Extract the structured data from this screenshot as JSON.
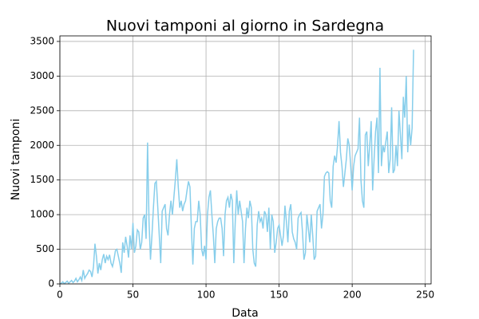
{
  "chart_data": {
    "type": "line",
    "title": "Nuovi tamponi al giorno in Sardegna",
    "x_label": "Data",
    "y_label": "Nuovi tamponi",
    "color": "#87ceeb",
    "grid": true,
    "xlim": [
      0,
      254
    ],
    "ylim": [
      0,
      3580
    ],
    "xticks": [
      0,
      50,
      100,
      150,
      200,
      250
    ],
    "yticks": [
      0,
      500,
      1000,
      1500,
      2000,
      2500,
      3000,
      3500
    ],
    "x": [
      0,
      1,
      2,
      3,
      4,
      5,
      6,
      7,
      8,
      9,
      10,
      11,
      12,
      13,
      14,
      15,
      16,
      17,
      18,
      19,
      20,
      21,
      22,
      23,
      24,
      25,
      26,
      27,
      28,
      29,
      30,
      31,
      32,
      33,
      34,
      35,
      36,
      37,
      38,
      39,
      40,
      41,
      42,
      43,
      44,
      45,
      46,
      47,
      48,
      49,
      50,
      51,
      52,
      53,
      54,
      55,
      56,
      57,
      58,
      59,
      60,
      61,
      62,
      63,
      64,
      65,
      66,
      67,
      68,
      69,
      70,
      71,
      72,
      73,
      74,
      75,
      76,
      77,
      78,
      79,
      80,
      81,
      82,
      83,
      84,
      85,
      86,
      87,
      88,
      89,
      90,
      91,
      92,
      93,
      94,
      95,
      96,
      97,
      98,
      99,
      100,
      101,
      102,
      103,
      104,
      105,
      106,
      107,
      108,
      109,
      110,
      111,
      112,
      113,
      114,
      115,
      116,
      117,
      118,
      119,
      120,
      121,
      122,
      123,
      124,
      125,
      126,
      127,
      128,
      129,
      130,
      131,
      132,
      133,
      134,
      135,
      136,
      137,
      138,
      139,
      140,
      141,
      142,
      143,
      144,
      145,
      146,
      147,
      148,
      149,
      150,
      151,
      152,
      153,
      154,
      155,
      156,
      157,
      158,
      159,
      160,
      161,
      162,
      163,
      164,
      165,
      166,
      167,
      168,
      169,
      170,
      171,
      172,
      173,
      174,
      175,
      176,
      177,
      178,
      179,
      180,
      181,
      182,
      183,
      184,
      185,
      186,
      187,
      188,
      189,
      190,
      191,
      192,
      193,
      194,
      195,
      196,
      197,
      198,
      199,
      200,
      201,
      202,
      203,
      204,
      205,
      206,
      207,
      208,
      209,
      210,
      211,
      212,
      213,
      214,
      215,
      216,
      217,
      218,
      219,
      220,
      221,
      222,
      223,
      224,
      225,
      226,
      227,
      228,
      229,
      230,
      231,
      232,
      233,
      234,
      235,
      236,
      237,
      238,
      239,
      240,
      241,
      242
    ],
    "values": [
      0,
      10,
      30,
      5,
      20,
      40,
      10,
      30,
      50,
      20,
      40,
      80,
      30,
      60,
      100,
      50,
      200,
      80,
      120,
      150,
      200,
      180,
      100,
      250,
      580,
      400,
      150,
      300,
      200,
      350,
      430,
      300,
      400,
      350,
      420,
      300,
      250,
      350,
      480,
      500,
      400,
      300,
      160,
      600,
      450,
      680,
      550,
      380,
      700,
      500,
      880,
      450,
      550,
      780,
      750,
      500,
      600,
      950,
      1000,
      650,
      2040,
      900,
      350,
      700,
      1100,
      1450,
      1480,
      1100,
      700,
      300,
      1050,
      1100,
      1150,
      800,
      700,
      1000,
      1200,
      1000,
      1250,
      1500,
      1800,
      1400,
      1100,
      1200,
      1050,
      1150,
      1200,
      1350,
      1480,
      1400,
      800,
      280,
      800,
      900,
      900,
      1200,
      1000,
      500,
      400,
      550,
      350,
      1000,
      1250,
      1350,
      1000,
      700,
      300,
      800,
      900,
      950,
      950,
      800,
      400,
      1000,
      1200,
      1250,
      1100,
      1300,
      1200,
      300,
      900,
      1350,
      1000,
      1200,
      1050,
      900,
      300,
      800,
      1100,
      950,
      1200,
      1100,
      500,
      300,
      250,
      850,
      1050,
      900,
      950,
      800,
      1050,
      1000,
      750,
      1100,
      500,
      1000,
      900,
      450,
      600,
      800,
      850,
      700,
      550,
      700,
      1130,
      900,
      600,
      1050,
      1150,
      750,
      650,
      600,
      500,
      950,
      1000,
      1030,
      750,
      350,
      450,
      1000,
      800,
      600,
      1000,
      700,
      350,
      400,
      1050,
      1100,
      1150,
      800,
      1000,
      1550,
      1600,
      1620,
      1600,
      1200,
      1100,
      1700,
      1850,
      1750,
      2000,
      2350,
      1900,
      1700,
      1400,
      1600,
      1800,
      2100,
      2000,
      1700,
      1350,
      1700,
      1850,
      1900,
      1950,
      2400,
      1500,
      1200,
      1100,
      2150,
      2200,
      1700,
      2000,
      2350,
      1350,
      1800,
      2200,
      2400,
      1600,
      3120,
      1700,
      2000,
      1900,
      2050,
      2200,
      1600,
      1800,
      2550,
      1600,
      1650,
      2000,
      1700,
      2500,
      2150,
      1800,
      2700,
      2400,
      3000,
      1900,
      2300,
      2000,
      2250,
      3380
    ]
  }
}
